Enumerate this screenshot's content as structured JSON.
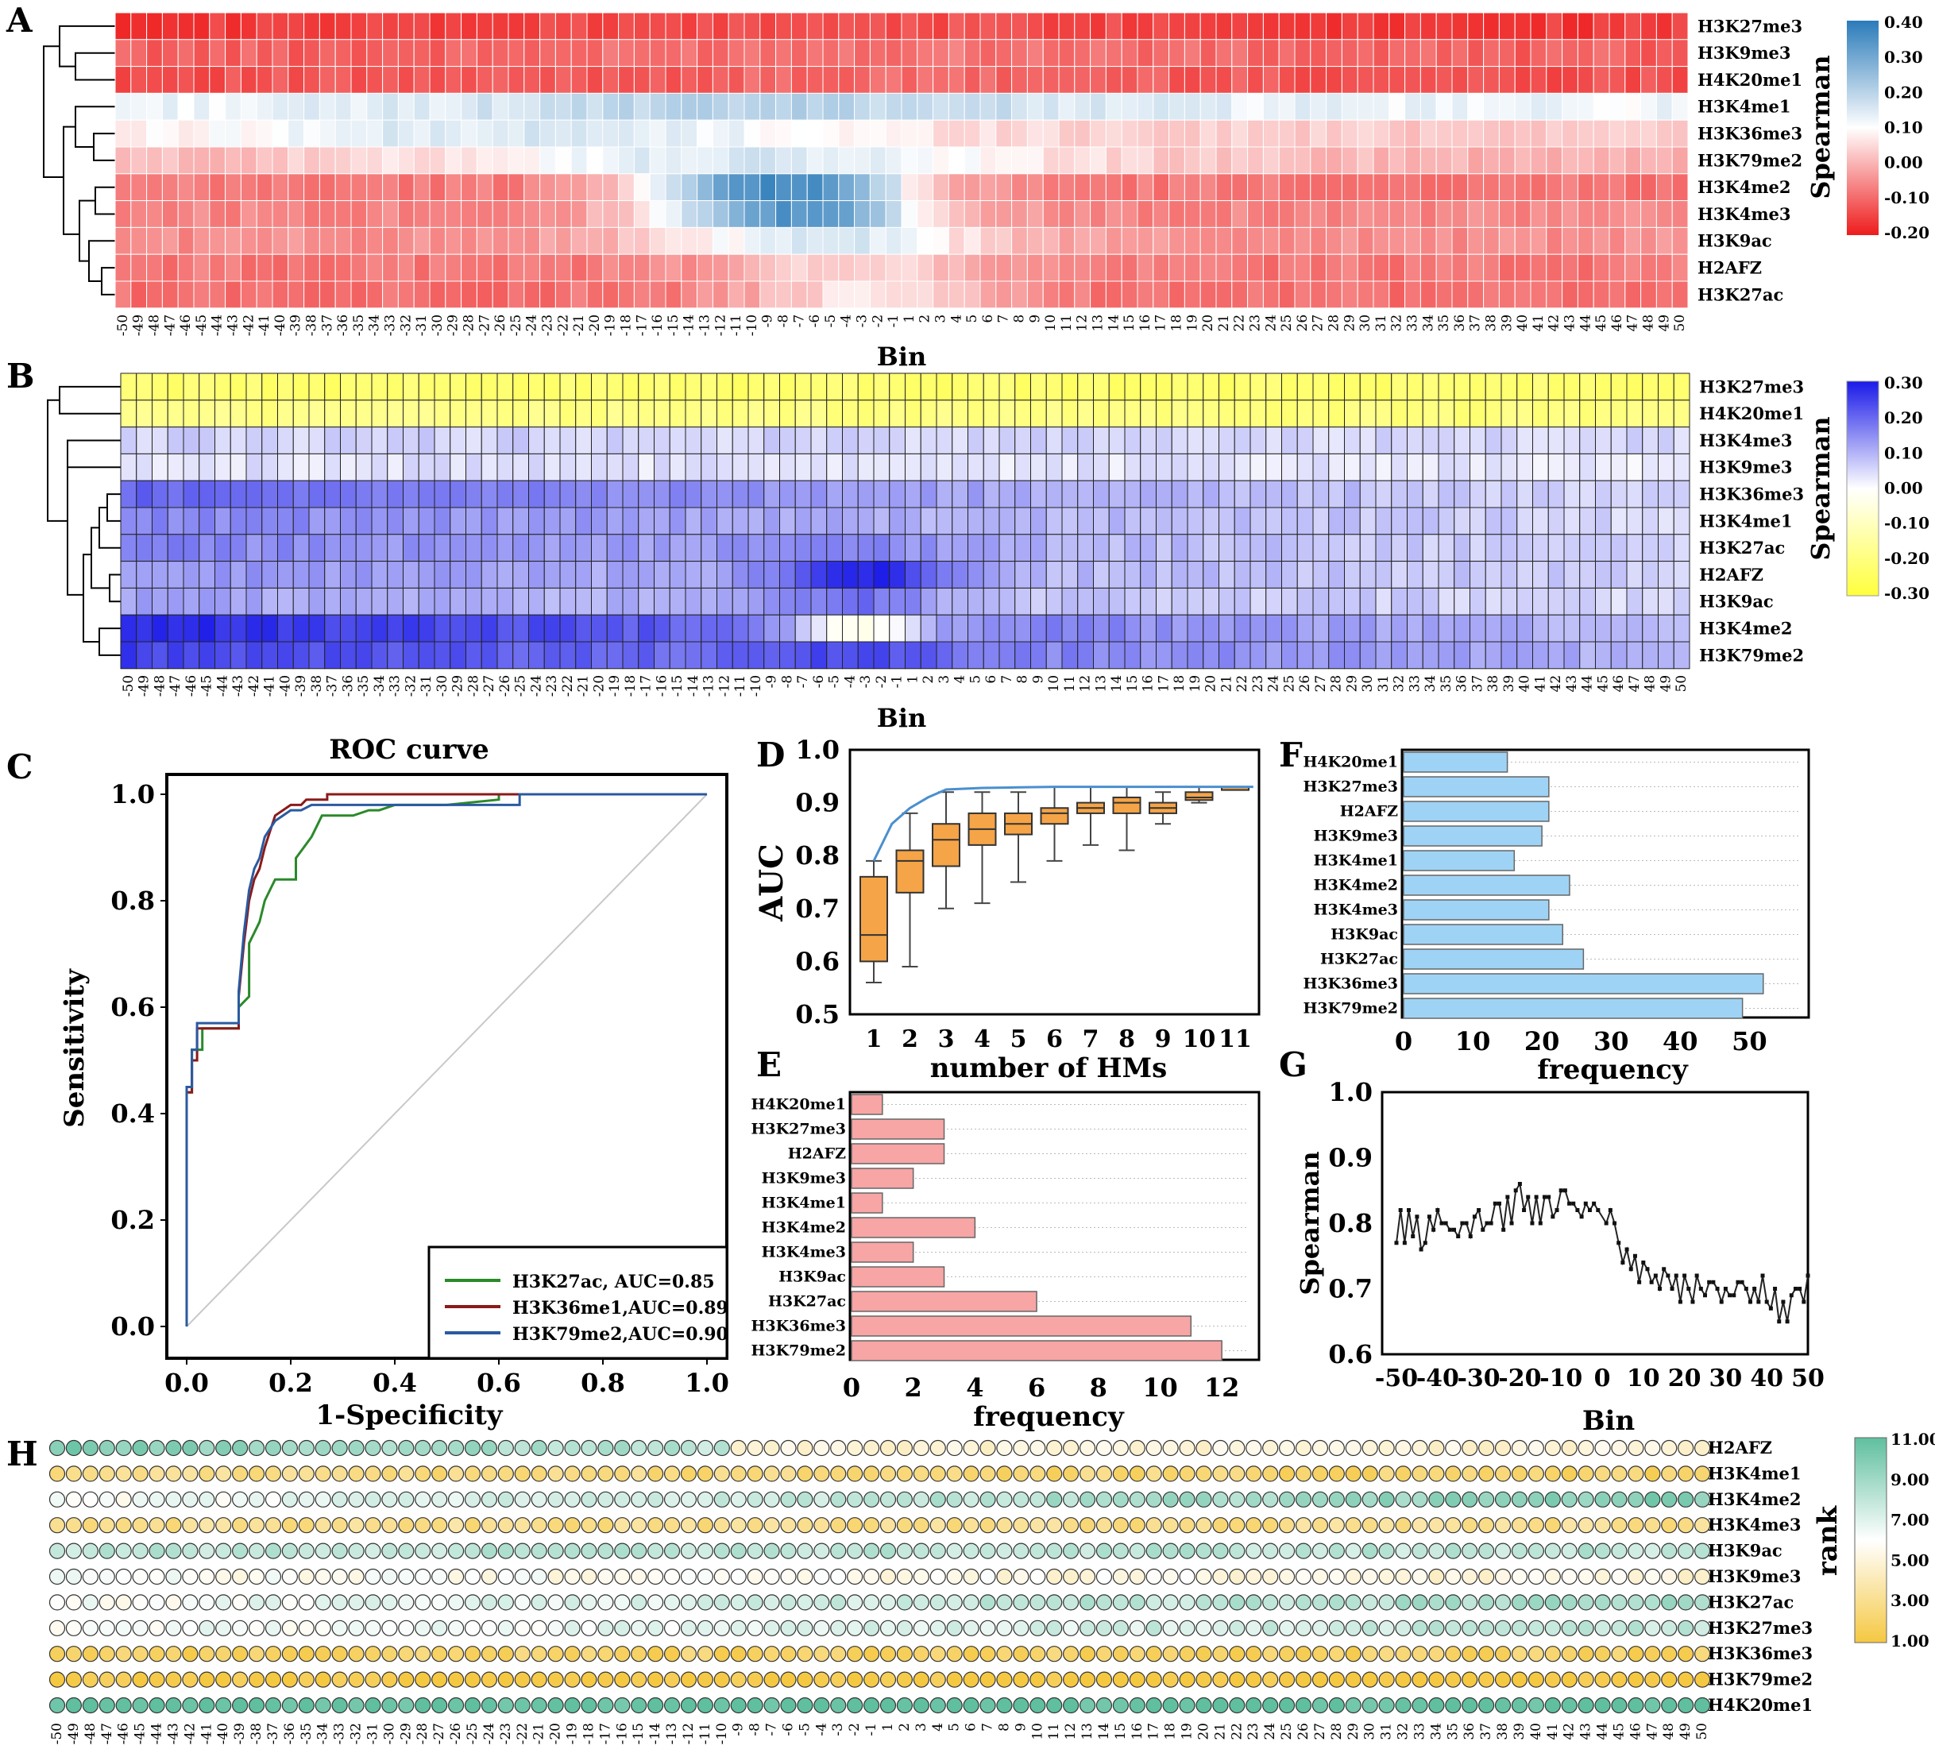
{
  "panel_labels": {
    "A": "A",
    "B": "B",
    "C": "C",
    "D": "D",
    "E": "E",
    "F": "F",
    "G": "G",
    "H": "H"
  },
  "bins": [
    -50,
    -49,
    -48,
    -47,
    -46,
    -45,
    -44,
    -43,
    -42,
    -41,
    -40,
    -39,
    -38,
    -37,
    -36,
    -35,
    -34,
    -33,
    -32,
    -31,
    -30,
    -29,
    -28,
    -27,
    -26,
    -25,
    -24,
    -23,
    -22,
    -21,
    -20,
    -19,
    -18,
    -17,
    -16,
    -15,
    -14,
    -13,
    -12,
    -11,
    -10,
    -9,
    -8,
    -7,
    -6,
    -5,
    -4,
    -3,
    -2,
    -1,
    1,
    2,
    3,
    4,
    5,
    6,
    7,
    8,
    9,
    10,
    11,
    12,
    13,
    14,
    15,
    16,
    17,
    18,
    19,
    20,
    21,
    22,
    23,
    24,
    25,
    26,
    27,
    28,
    29,
    30,
    31,
    32,
    33,
    34,
    35,
    36,
    37,
    38,
    39,
    40,
    41,
    42,
    43,
    44,
    45,
    46,
    47,
    48,
    49,
    50
  ],
  "colors": {
    "a_low": "#ee1c1c",
    "a_mid": "#ffffff",
    "a_high": "#2b7bba",
    "b_low": "#ffff3c",
    "b_mid": "#ffffff",
    "b_high": "#1a1ae8",
    "h_low": "#f5c842",
    "h_mid": "#ffffff",
    "h_high": "#5fbf9f",
    "orange": "#f5a447",
    "pink": "#f7a5a5",
    "lightblue": "#9fd3f5",
    "roc_green": "#2a8a2a",
    "roc_red": "#8b1a1a",
    "roc_blue": "#2a5aa0",
    "curve_blue": "#4a8fcf"
  },
  "chart_data": [
    {
      "id": "A",
      "type": "heatmap",
      "xlabel": "Bin",
      "colorbar_label": "Spearman",
      "colorbar_ticks": [
        "0.40",
        "0.30",
        "0.20",
        "0.10",
        "0.00",
        "-0.10",
        "-0.20"
      ],
      "vmin": -0.2,
      "vmax": 0.4,
      "rows": [
        "H3K27me3",
        "H3K9me3",
        "H4K20me1",
        "H3K4me1",
        "H3K36me3",
        "H3K79me2",
        "H3K4me2",
        "H3K4me3",
        "H3K9ac",
        "H2AFZ",
        "H3K27ac"
      ],
      "row_profiles": [
        {
          "base": -0.16,
          "amp": 0.03,
          "center": 0,
          "width": 20
        },
        {
          "base": -0.11,
          "amp": 0.03,
          "center": 0,
          "width": 20
        },
        {
          "base": -0.13,
          "amp": 0.03,
          "center": 0,
          "width": 20
        },
        {
          "base": 0.12,
          "amp": 0.08,
          "center": -8,
          "width": 22
        },
        {
          "base": 0.03,
          "amp": 0.12,
          "center": -25,
          "width": 25
        },
        {
          "base": 0.0,
          "amp": 0.15,
          "center": -10,
          "width": 22
        },
        {
          "base": -0.08,
          "amp": 0.45,
          "center": -8,
          "width": 9
        },
        {
          "base": -0.06,
          "amp": 0.4,
          "center": -7,
          "width": 9
        },
        {
          "base": -0.05,
          "amp": 0.2,
          "center": -5,
          "width": 12
        },
        {
          "base": -0.08,
          "amp": 0.13,
          "center": -3,
          "width": 10
        },
        {
          "base": -0.09,
          "amp": 0.16,
          "center": -2,
          "width": 9
        }
      ]
    },
    {
      "id": "B",
      "type": "heatmap",
      "xlabel": "Bin",
      "colorbar_label": "Spearman",
      "colorbar_ticks": [
        "0.30",
        "0.20",
        "0.10",
        "0.00",
        "-0.10",
        "-0.20",
        "-0.30"
      ],
      "vmin": -0.3,
      "vmax": 0.3,
      "rows": [
        "H3K27me3",
        "H4K20me1",
        "H3K4me3",
        "H3K9me3",
        "H3K36me3",
        "H3K4me1",
        "H3K27ac",
        "H2AFZ",
        "H3K9ac",
        "H3K4me2",
        "H3K79me2"
      ],
      "row_profiles": [
        {
          "start": -0.22,
          "end": -0.22,
          "bump": 0,
          "center": 0,
          "width": 1
        },
        {
          "start": -0.18,
          "end": -0.2,
          "bump": 0,
          "center": 0,
          "width": 1
        },
        {
          "start": 0.06,
          "end": 0.05,
          "bump": 0,
          "center": 0,
          "width": 1
        },
        {
          "start": 0.04,
          "end": 0.03,
          "bump": 0,
          "center": 0,
          "width": 1
        },
        {
          "start": 0.2,
          "end": 0.05,
          "bump": 0,
          "center": 0,
          "width": 1
        },
        {
          "start": 0.16,
          "end": 0.05,
          "bump": 0,
          "center": 0,
          "width": 1
        },
        {
          "start": 0.16,
          "end": 0.05,
          "bump": 0.05,
          "center": -3,
          "width": 8
        },
        {
          "start": 0.14,
          "end": 0.06,
          "bump": 0.18,
          "center": -3,
          "width": 6
        },
        {
          "start": 0.12,
          "end": 0.05,
          "bump": 0.1,
          "center": -3,
          "width": 6
        },
        {
          "start": 0.28,
          "end": 0.08,
          "bump": -0.22,
          "center": -3,
          "width": 5
        },
        {
          "start": 0.25,
          "end": 0.1,
          "bump": 0.06,
          "center": -3,
          "width": 6
        }
      ]
    },
    {
      "id": "C",
      "type": "line",
      "title": "ROC curve",
      "xlabel": "1-Specificity",
      "ylabel": "Sensitivity",
      "xlim": [
        0,
        1
      ],
      "ylim": [
        0,
        1
      ],
      "xticks": [
        "0.0",
        "0.2",
        "0.4",
        "0.6",
        "0.8",
        "1.0"
      ],
      "yticks": [
        "0.0",
        "0.2",
        "0.4",
        "0.6",
        "0.8",
        "1.0"
      ],
      "series": [
        {
          "name": "H3K27ac, AUC=0.85",
          "color": "#2a8a2a",
          "x": [
            0,
            0,
            0.01,
            0.01,
            0.03,
            0.03,
            0.05,
            0.05,
            0.1,
            0.1,
            0.12,
            0.12,
            0.14,
            0.15,
            0.16,
            0.17,
            0.19,
            0.21,
            0.21,
            0.24,
            0.25,
            0.26,
            0.29,
            0.32,
            0.35,
            0.37,
            0.4,
            0.46,
            0.5,
            0.6,
            0.6,
            1.0
          ],
          "y": [
            0,
            0.44,
            0.44,
            0.52,
            0.52,
            0.56,
            0.56,
            0.56,
            0.56,
            0.6,
            0.62,
            0.72,
            0.76,
            0.8,
            0.82,
            0.84,
            0.84,
            0.84,
            0.88,
            0.92,
            0.94,
            0.96,
            0.96,
            0.96,
            0.97,
            0.97,
            0.98,
            0.98,
            0.98,
            0.99,
            1.0,
            1.0
          ]
        },
        {
          "name": "H3K36me1,AUC=0.89",
          "color": "#8b1a1a",
          "x": [
            0,
            0,
            0.01,
            0.01,
            0.02,
            0.02,
            0.05,
            0.05,
            0.1,
            0.1,
            0.11,
            0.12,
            0.13,
            0.14,
            0.15,
            0.16,
            0.17,
            0.2,
            0.22,
            0.23,
            0.27,
            0.27,
            0.35,
            0.4,
            0.62,
            0.62,
            1.0
          ],
          "y": [
            0,
            0.44,
            0.44,
            0.5,
            0.5,
            0.56,
            0.56,
            0.56,
            0.56,
            0.62,
            0.72,
            0.8,
            0.84,
            0.86,
            0.9,
            0.93,
            0.96,
            0.98,
            0.98,
            0.99,
            0.99,
            1.0,
            1.0,
            1.0,
            1.0,
            1.0,
            1.0
          ]
        },
        {
          "name": "H3K79me2,AUC=0.90",
          "color": "#2a5aa0",
          "x": [
            0,
            0,
            0.01,
            0.01,
            0.02,
            0.02,
            0.05,
            0.05,
            0.1,
            0.1,
            0.11,
            0.12,
            0.13,
            0.14,
            0.15,
            0.17,
            0.2,
            0.22,
            0.24,
            0.27,
            0.3,
            0.35,
            0.4,
            0.64,
            0.64,
            1.0
          ],
          "y": [
            0,
            0.45,
            0.45,
            0.52,
            0.52,
            0.57,
            0.57,
            0.57,
            0.57,
            0.63,
            0.74,
            0.82,
            0.86,
            0.88,
            0.92,
            0.95,
            0.97,
            0.97,
            0.98,
            0.98,
            0.98,
            0.98,
            0.98,
            0.98,
            1.0,
            1.0
          ]
        }
      ]
    },
    {
      "id": "D",
      "type": "box",
      "xlabel": "number of HMs",
      "ylabel": "AUC",
      "ylim": [
        0.5,
        1.0
      ],
      "yticks": [
        "0.5",
        "0.6",
        "0.7",
        "0.8",
        "0.9",
        "1.0"
      ],
      "categories": [
        "1",
        "2",
        "3",
        "4",
        "5",
        "6",
        "7",
        "8",
        "9",
        "10",
        "11"
      ],
      "boxes": [
        {
          "min": 0.56,
          "q1": 0.6,
          "median": 0.65,
          "q3": 0.76,
          "max": 0.79
        },
        {
          "min": 0.59,
          "q1": 0.73,
          "median": 0.79,
          "q3": 0.81,
          "max": 0.88
        },
        {
          "min": 0.7,
          "q1": 0.78,
          "median": 0.83,
          "q3": 0.86,
          "max": 0.92
        },
        {
          "min": 0.71,
          "q1": 0.82,
          "median": 0.85,
          "q3": 0.88,
          "max": 0.92
        },
        {
          "min": 0.75,
          "q1": 0.84,
          "median": 0.86,
          "q3": 0.88,
          "max": 0.92
        },
        {
          "min": 0.79,
          "q1": 0.86,
          "median": 0.88,
          "q3": 0.89,
          "max": 0.93
        },
        {
          "min": 0.82,
          "q1": 0.88,
          "median": 0.89,
          "q3": 0.9,
          "max": 0.93
        },
        {
          "min": 0.81,
          "q1": 0.88,
          "median": 0.9,
          "q3": 0.91,
          "max": 0.93
        },
        {
          "min": 0.86,
          "q1": 0.88,
          "median": 0.89,
          "q3": 0.9,
          "max": 0.92
        },
        {
          "min": 0.9,
          "q1": 0.905,
          "median": 0.91,
          "q3": 0.92,
          "max": 0.93
        },
        {
          "min": 0.93,
          "q1": 0.93,
          "median": 0.93,
          "q3": 0.93,
          "max": 0.93
        }
      ],
      "max_curve_x": [
        1,
        1.5,
        2,
        2.5,
        3,
        4,
        5,
        6,
        7,
        8,
        9,
        10,
        11.5
      ],
      "max_curve_y": [
        0.79,
        0.86,
        0.89,
        0.91,
        0.925,
        0.928,
        0.929,
        0.93,
        0.93,
        0.93,
        0.93,
        0.93,
        0.93
      ]
    },
    {
      "id": "E",
      "type": "bar",
      "xlabel": "frequency",
      "xlim": [
        0,
        13
      ],
      "xticks": [
        "0",
        "2",
        "4",
        "6",
        "8",
        "10",
        "12"
      ],
      "categories": [
        "H4K20me1",
        "H3K27me3",
        "H2AFZ",
        "H3K9me3",
        "H3K4me1",
        "H3K4me2",
        "H3K4me3",
        "H3K9ac",
        "H3K27ac",
        "H3K36me3",
        "H3K79me2"
      ],
      "values": [
        1,
        3,
        3,
        2,
        1,
        4,
        2,
        3,
        6,
        11,
        12
      ]
    },
    {
      "id": "F",
      "type": "bar",
      "xlabel": "frequency",
      "xlim": [
        0,
        58
      ],
      "xticks": [
        "0",
        "10",
        "20",
        "30",
        "40",
        "50"
      ],
      "categories": [
        "H4K20me1",
        "H3K27me3",
        "H2AFZ",
        "H3K9me3",
        "H3K4me1",
        "H3K4me2",
        "H3K4me3",
        "H3K9ac",
        "H3K27ac",
        "H3K36me3",
        "H3K79me2"
      ],
      "values": [
        15,
        21,
        21,
        20,
        16,
        24,
        21,
        23,
        26,
        52,
        49
      ]
    },
    {
      "id": "G",
      "type": "line",
      "xlabel": "Bin",
      "ylabel": "Spearman",
      "xlim": [
        -50,
        50
      ],
      "ylim": [
        0.6,
        1.0
      ],
      "xticks": [
        "-50",
        "-40",
        "-30",
        "-20",
        "-10",
        "0",
        "10",
        "20",
        "30",
        "40",
        "50"
      ],
      "yticks": [
        "0.6",
        "0.7",
        "0.8",
        "0.9",
        "1.0"
      ],
      "y": [
        0.77,
        0.82,
        0.77,
        0.82,
        0.78,
        0.81,
        0.76,
        0.77,
        0.81,
        0.79,
        0.82,
        0.8,
        0.8,
        0.79,
        0.79,
        0.78,
        0.8,
        0.8,
        0.78,
        0.81,
        0.82,
        0.79,
        0.8,
        0.8,
        0.83,
        0.83,
        0.79,
        0.84,
        0.8,
        0.85,
        0.86,
        0.82,
        0.84,
        0.8,
        0.84,
        0.8,
        0.84,
        0.84,
        0.81,
        0.82,
        0.85,
        0.85,
        0.83,
        0.83,
        0.82,
        0.81,
        0.83,
        0.82,
        0.83,
        0.82,
        0.8,
        0.82,
        0.8,
        0.77,
        0.74,
        0.76,
        0.73,
        0.75,
        0.71,
        0.74,
        0.73,
        0.71,
        0.72,
        0.7,
        0.73,
        0.72,
        0.7,
        0.72,
        0.68,
        0.72,
        0.7,
        0.68,
        0.72,
        0.7,
        0.69,
        0.71,
        0.71,
        0.7,
        0.68,
        0.7,
        0.69,
        0.69,
        0.71,
        0.71,
        0.7,
        0.68,
        0.7,
        0.68,
        0.72,
        0.68,
        0.67,
        0.7,
        0.65,
        0.68,
        0.65,
        0.69,
        0.7,
        0.7,
        0.68,
        0.72
      ]
    },
    {
      "id": "H",
      "type": "heatmap",
      "colorbar_label": "rank",
      "colorbar_ticks": [
        "11.00",
        "9.00",
        "7.00",
        "5.00",
        "3.00",
        "1.00"
      ],
      "vmin": 1,
      "vmax": 11,
      "rows": [
        "H2AFZ",
        "H3K4me1",
        "H3K4me2",
        "H3K4me3",
        "H3K9ac",
        "H3K9me3",
        "H3K27ac",
        "H3K27me3",
        "H3K36me3",
        "H3K79me2",
        "H4K20me1"
      ],
      "row_profiles": [
        {
          "start": 10,
          "end": 5,
          "split": -10
        },
        {
          "start": 3,
          "end": 2,
          "split": 0
        },
        {
          "start": 6,
          "end": 10,
          "split": 0
        },
        {
          "start": 3,
          "end": 3,
          "split": 0
        },
        {
          "start": 8,
          "end": 8,
          "split": 0
        },
        {
          "start": 6,
          "end": 5,
          "split": 0
        },
        {
          "start": 6,
          "end": 9,
          "split": 0
        },
        {
          "start": 6,
          "end": 8,
          "split": 0
        },
        {
          "start": 2,
          "end": 2,
          "split": 0
        },
        {
          "start": 1,
          "end": 1,
          "split": 0
        },
        {
          "start": 11,
          "end": 11,
          "split": 0
        }
      ]
    }
  ]
}
